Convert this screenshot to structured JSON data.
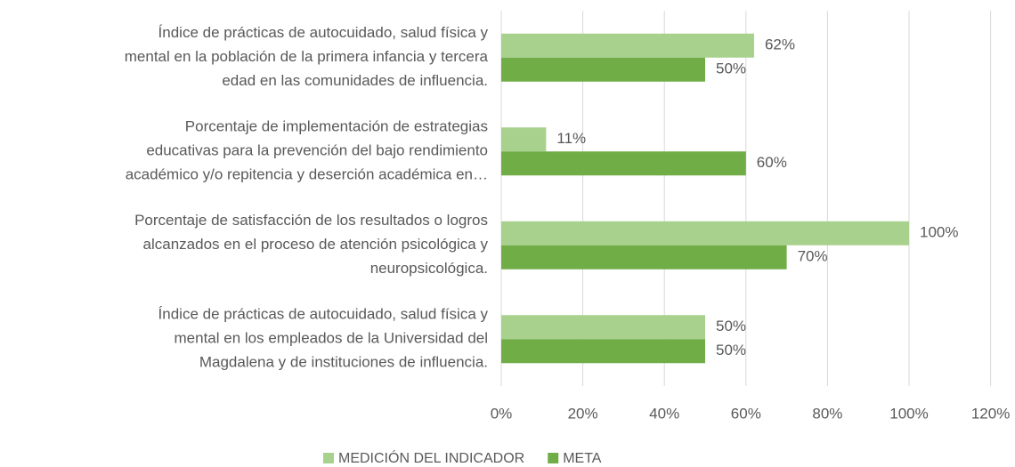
{
  "chart_data": {
    "type": "bar",
    "orientation": "horizontal",
    "categories": [
      [
        "Índice de prácticas de autocuidado, salud física y",
        "mental en la población de la primera infancia y tercera",
        "edad en las comunidades de influencia."
      ],
      [
        "Porcentaje de implementación de estrategias",
        "educativas para la prevención del bajo rendimiento",
        "académico y/o repitencia y deserción académica en…"
      ],
      [
        "Porcentaje de satisfacción de los resultados o logros",
        "alcanzados en el proceso de atención psicológica y",
        "neuropsicológica."
      ],
      [
        "Índice de prácticas de autocuidado, salud física y",
        "mental en los empleados de la Universidad del",
        "Magdalena y de instituciones de influencia."
      ]
    ],
    "series": [
      {
        "name": "MEDICIÓN DEL INDICADOR",
        "color": "#a9d18e",
        "values": [
          62,
          11,
          100,
          50
        ],
        "value_labels": [
          "62%",
          "11%",
          "100%",
          "50%"
        ]
      },
      {
        "name": "META",
        "color": "#70ad47",
        "values": [
          50,
          60,
          70,
          50
        ],
        "value_labels": [
          "50%",
          "60%",
          "70%",
          "50%"
        ]
      }
    ],
    "xlim": [
      0,
      120
    ],
    "xticks": [
      {
        "value": 0,
        "label": "0%"
      },
      {
        "value": 20,
        "label": "20%"
      },
      {
        "value": 40,
        "label": "40%"
      },
      {
        "value": 60,
        "label": "60%"
      },
      {
        "value": 80,
        "label": "80%"
      },
      {
        "value": 100,
        "label": "100%"
      },
      {
        "value": 120,
        "label": "120%"
      }
    ],
    "grid": true,
    "legend": "bottom"
  }
}
